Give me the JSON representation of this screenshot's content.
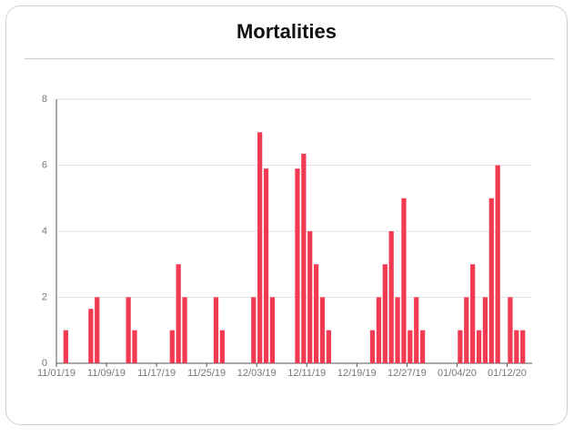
{
  "chart_data": {
    "type": "bar",
    "title": "Mortalities",
    "color": "#f23a53",
    "grid": true,
    "ylim": [
      0,
      8
    ],
    "yticks": [
      0,
      2,
      4,
      6,
      8
    ],
    "categories": [
      "11/01/19",
      null,
      null,
      null,
      null,
      null,
      null,
      null,
      "11/09/19",
      null,
      null,
      null,
      null,
      null,
      null,
      null,
      "11/17/19",
      null,
      null,
      null,
      null,
      null,
      null,
      null,
      "11/25/19",
      null,
      null,
      null,
      null,
      null,
      null,
      null,
      "12/03/19",
      null,
      null,
      null,
      null,
      null,
      null,
      null,
      "12/11/19",
      null,
      null,
      null,
      null,
      null,
      null,
      null,
      "12/19/19",
      null,
      null,
      null,
      null,
      null,
      null,
      null,
      "12/27/19",
      null,
      null,
      null,
      null,
      null,
      null,
      null,
      "01/04/20",
      null,
      null,
      null,
      null,
      null,
      null,
      null,
      "01/12/20",
      null,
      null,
      null
    ],
    "values": [
      0,
      1,
      0,
      0,
      0,
      1.65,
      2,
      0,
      0,
      0,
      0,
      2,
      1,
      0,
      0,
      0,
      0,
      0,
      1,
      3,
      2,
      0,
      0,
      0,
      0,
      2,
      1,
      0,
      0,
      0,
      0,
      2,
      7,
      5.9,
      2,
      0,
      0,
      0,
      5.9,
      6.35,
      4,
      3,
      2,
      1,
      0,
      0,
      0,
      0,
      0,
      0,
      1,
      2,
      3,
      4,
      2,
      5,
      1,
      2,
      1,
      0,
      0,
      0,
      0,
      0,
      1,
      2,
      3,
      1,
      2,
      5,
      6,
      0,
      2,
      1,
      1,
      0
    ]
  }
}
